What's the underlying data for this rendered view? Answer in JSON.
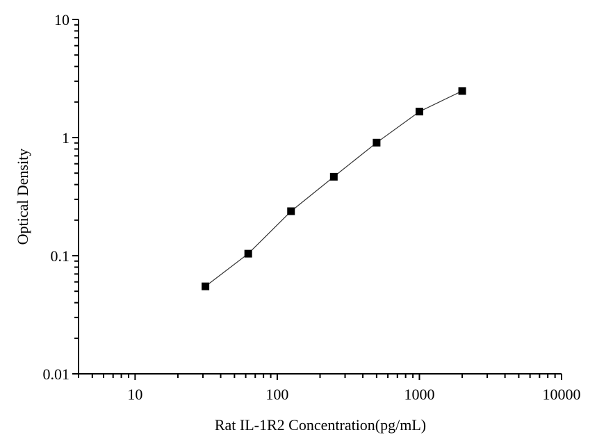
{
  "chart_data": {
    "type": "line",
    "title": "",
    "xlabel": "Rat IL-1R2 Concentration(pg/mL)",
    "ylabel": "Optical Density",
    "xscale": "log",
    "yscale": "log",
    "xlim": [
      4,
      10000
    ],
    "ylim": [
      0.01,
      10
    ],
    "xticks": [
      10,
      100,
      1000,
      10000
    ],
    "xtick_labels": [
      "10",
      "100",
      "1000",
      "10000"
    ],
    "yticks": [
      0.01,
      0.1,
      1,
      10
    ],
    "ytick_labels": [
      "0.01",
      "0.1",
      "1",
      "10"
    ],
    "grid": false,
    "marker": "square",
    "colors": {
      "marker": "#000000",
      "line": "#333333",
      "axis": "#000000"
    },
    "series": [
      {
        "x": [
          31.25,
          62.5,
          125,
          250,
          500,
          1000,
          2000
        ],
        "y": [
          0.055,
          0.104,
          0.238,
          0.466,
          0.906,
          1.66,
          2.48
        ]
      }
    ]
  }
}
